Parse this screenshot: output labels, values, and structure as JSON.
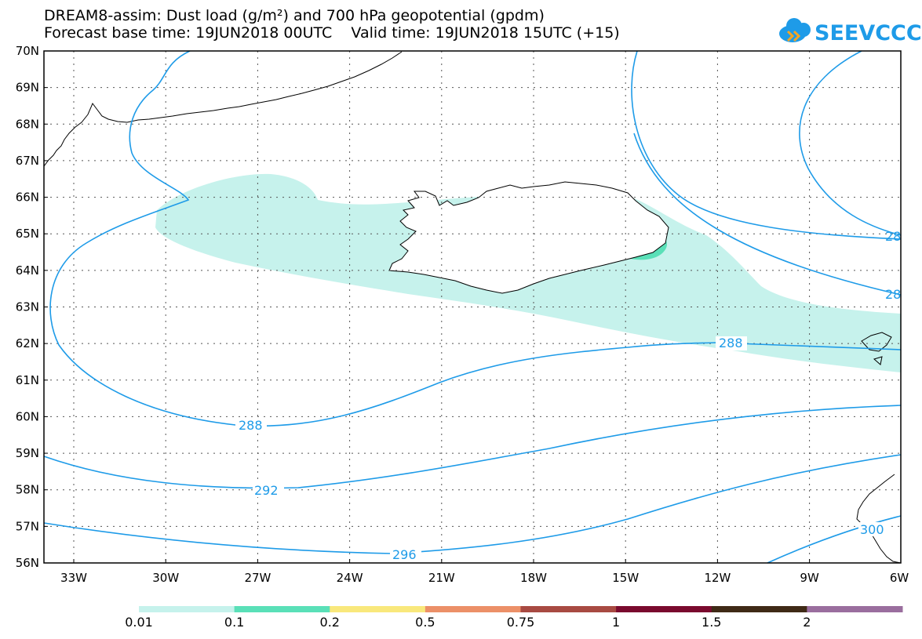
{
  "header": {
    "line1": "DREAM8-assim: Dust load (g/m²) and 700 hPa geopotential (gpdm)",
    "line2": "Forecast base time: 19JUN2018 00UTC    Valid time: 19JUN2018 15UTC (+15)"
  },
  "logo": {
    "text": "SEEVCCC",
    "color": "#1e9be8",
    "accent": "#f5a623"
  },
  "map": {
    "lat_labels": [
      "70N",
      "69N",
      "68N",
      "67N",
      "66N",
      "65N",
      "64N",
      "63N",
      "62N",
      "61N",
      "60N",
      "59N",
      "58N",
      "57N",
      "56N"
    ],
    "lon_labels": [
      "33W",
      "30W",
      "27W",
      "24W",
      "21W",
      "18W",
      "15W",
      "12W",
      "9W",
      "6W"
    ],
    "contour_labels": {
      "c288_a": "288",
      "c288_b": "288",
      "c292": "292",
      "c296": "296",
      "c300": "300",
      "c28_a": "28",
      "c28_b": "28"
    },
    "contour_color": "#1e9be8"
  },
  "legend": {
    "colors": [
      "#c6f2ec",
      "#5ae0b8",
      "#f9e87c",
      "#ec9068",
      "#a84a42",
      "#7a0a2e",
      "#3f2a16",
      "#9a6e9e"
    ],
    "labels": [
      "0.01",
      "0.1",
      "0.2",
      "0.5",
      "0.75",
      "1",
      "1.5",
      "2"
    ]
  }
}
